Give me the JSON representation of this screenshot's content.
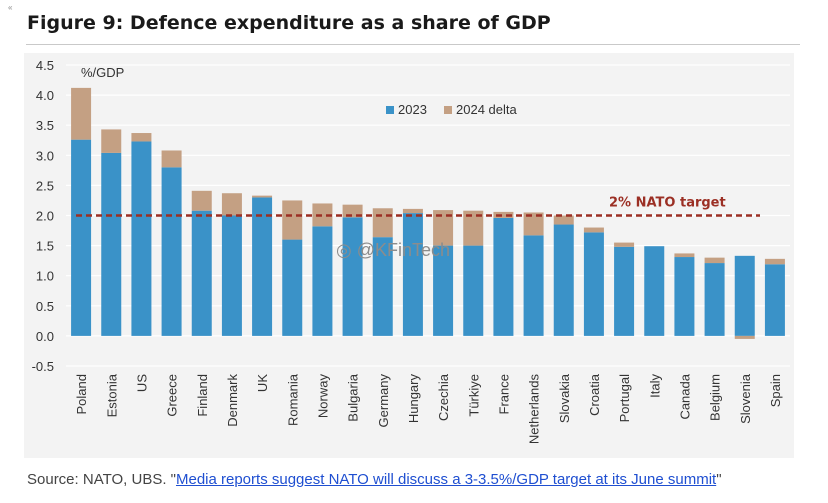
{
  "figure_title": "Figure 9: Defence expenditure as a share of GDP",
  "corner_mark": "«",
  "source": {
    "prefix": "Source: NATO, UBS. \"",
    "link_text": "Media reports suggest NATO will discuss a 3-3.5%/GDP target at its June summit",
    "suffix": "\""
  },
  "watermark": "@KFinTech",
  "colors": {
    "series_2023": "#3a92c8",
    "series_delta": "#c4a083",
    "target_line": "#9b2f24",
    "plot_bg": "#f3f3f3",
    "gridline": "#ffffff",
    "axis_text": "#333333"
  },
  "chart_data": {
    "type": "bar",
    "stacked": true,
    "ylabel": "%/GDP",
    "ylim": [
      -0.5,
      4.5
    ],
    "yticks": [
      "-0.5",
      "0.0",
      "0.5",
      "1.0",
      "1.5",
      "2.0",
      "2.5",
      "3.0",
      "3.5",
      "4.0",
      "4.5"
    ],
    "categories": [
      "Poland",
      "Estonia",
      "US",
      "Greece",
      "Finland",
      "Denmark",
      "UK",
      "Romania",
      "Norway",
      "Bulgaria",
      "Germany",
      "Hungary",
      "Czechia",
      "Türkiye",
      "France",
      "Netherlands",
      "Slovakia",
      "Croatia",
      "Portugal",
      "Italy",
      "Canada",
      "Belgium",
      "Slovenia",
      "Spain"
    ],
    "series": [
      {
        "name": "2023",
        "values": [
          3.26,
          3.04,
          3.23,
          2.8,
          2.08,
          2.0,
          2.3,
          1.6,
          1.82,
          1.97,
          1.64,
          2.04,
          1.5,
          1.5,
          1.96,
          1.67,
          1.85,
          1.72,
          1.48,
          1.49,
          1.31,
          1.21,
          1.33,
          1.19
        ]
      },
      {
        "name": "2024 delta",
        "values": [
          0.86,
          0.39,
          0.14,
          0.28,
          0.33,
          0.37,
          0.03,
          0.65,
          0.38,
          0.21,
          0.48,
          0.07,
          0.59,
          0.58,
          0.1,
          0.38,
          0.15,
          0.08,
          0.07,
          0.0,
          0.06,
          0.09,
          -0.05,
          0.09
        ]
      }
    ],
    "reference_line": {
      "label": "2% NATO target",
      "value": 2.0
    },
    "legend": [
      "2023",
      "2024 delta"
    ],
    "legend_position": "top-center"
  }
}
